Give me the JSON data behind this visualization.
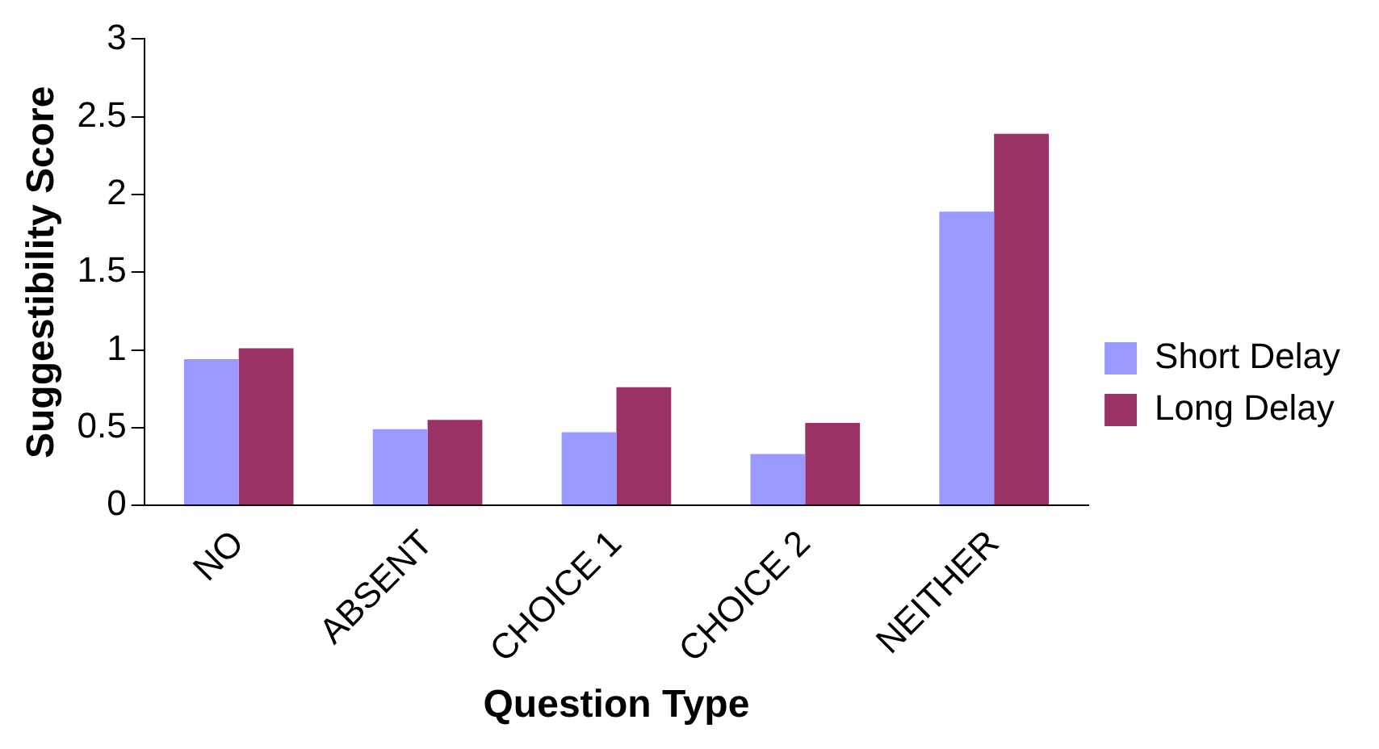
{
  "chart_data": {
    "type": "bar",
    "xlabel": "Question Type",
    "ylabel": "Suggestibility Score",
    "categories": [
      "NO",
      "ABSENT",
      "CHOICE 1",
      "CHOICE 2",
      "NEITHER"
    ],
    "series": [
      {
        "name": "Short Delay",
        "color": "#9999ff",
        "values": [
          0.94,
          0.49,
          0.47,
          0.33,
          1.89
        ]
      },
      {
        "name": "Long Delay",
        "color": "#993366",
        "values": [
          1.01,
          0.55,
          0.76,
          0.53,
          2.39
        ]
      }
    ],
    "ylim": [
      0,
      3
    ],
    "yticks": [
      0,
      0.5,
      1,
      1.5,
      2,
      2.5,
      3
    ],
    "grid": false,
    "legend": "right"
  }
}
